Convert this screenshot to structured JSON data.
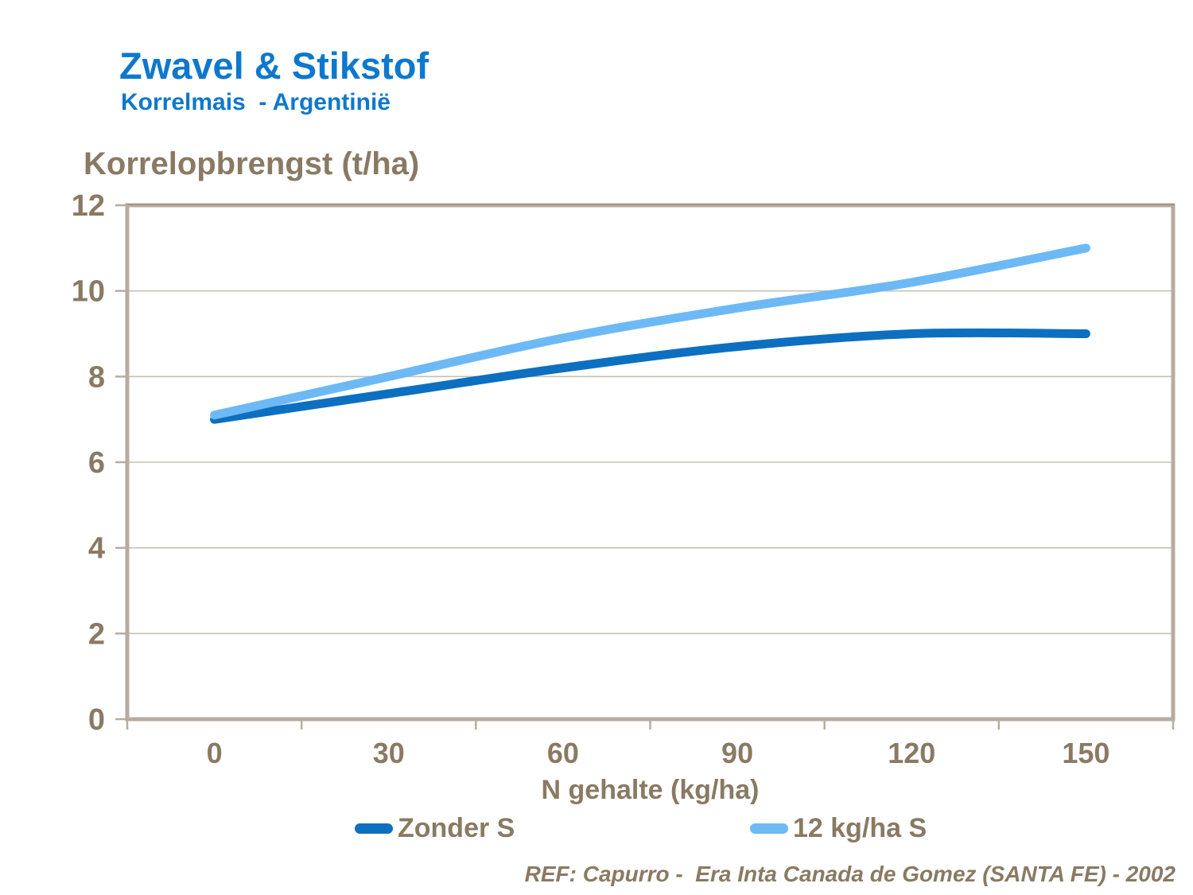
{
  "header": {
    "title": "Zwavel & Stikstof",
    "subtitle": "Korrelmais  - Argentinië"
  },
  "footer": {
    "reference": "REF: Capurro -  Era Inta Canada de Gomez (SANTA FE) - 2002"
  },
  "colors": {
    "title_blue": "#0e78cc",
    "chart_text": "#8a7a63",
    "frame": "#b7aca0",
    "frame_shadow": "#a2968a",
    "gridline": "#c9c0b4",
    "series_dark_blue": "#0d6fc0",
    "series_light_blue": "#6db9f5",
    "background": "#ffffff"
  },
  "chart_data": {
    "type": "line",
    "title": "Zwavel & Stikstof — Korrelmais - Argentinië",
    "ylabel": "Korrelopbrengst (t/ha)",
    "xlabel": "N gehalte (kg/ha)",
    "x": [
      0,
      30,
      60,
      90,
      120,
      150
    ],
    "xtick_labels": [
      "0",
      "30",
      "60",
      "90",
      "120",
      "150"
    ],
    "series": [
      {
        "name": "Zonder S",
        "color": "#0d6fc0",
        "values": [
          7.0,
          7.6,
          8.2,
          8.7,
          9.0,
          9.0
        ]
      },
      {
        "name": "12 kg/ha S",
        "color": "#6db9f5",
        "values": [
          7.1,
          8.0,
          8.9,
          9.6,
          10.2,
          11.0
        ]
      }
    ],
    "ylim": [
      0,
      12
    ],
    "yticks": [
      0,
      2,
      4,
      6,
      8,
      10,
      12
    ],
    "grid": true,
    "legend_position": "bottom",
    "line_smoothing": true
  }
}
